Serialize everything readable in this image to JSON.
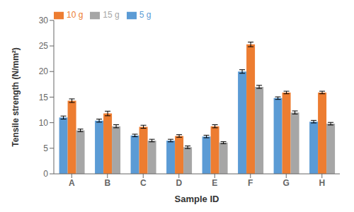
{
  "chart_data": {
    "type": "bar",
    "categories": [
      "A",
      "B",
      "C",
      "D",
      "E",
      "F",
      "G",
      "H"
    ],
    "series": [
      {
        "name": "5 g",
        "color": "#5b9bd5",
        "values": [
          11.0,
          10.4,
          7.5,
          6.5,
          7.3,
          20.0,
          14.8,
          10.2
        ],
        "errors": [
          0.3,
          0.3,
          0.25,
          0.25,
          0.25,
          0.35,
          0.25,
          0.25
        ]
      },
      {
        "name": "10 g",
        "color": "#ed7d31",
        "values": [
          14.3,
          11.8,
          9.2,
          7.4,
          9.3,
          25.3,
          15.9,
          15.9
        ],
        "errors": [
          0.35,
          0.45,
          0.3,
          0.25,
          0.3,
          0.45,
          0.25,
          0.25
        ]
      },
      {
        "name": "15 g",
        "color": "#a6a6a6",
        "values": [
          8.5,
          9.3,
          6.5,
          5.2,
          6.1,
          17.0,
          12.0,
          9.8
        ],
        "errors": [
          0.25,
          0.3,
          0.25,
          0.25,
          0.2,
          0.3,
          0.3,
          0.25
        ]
      }
    ],
    "xlabel": "Sample ID",
    "ylabel": "Tensile strength (N/mm²)",
    "ylim": [
      0,
      30
    ],
    "yticks": [
      0,
      5,
      10,
      15,
      20,
      25,
      30
    ],
    "legend": "upper-left",
    "grid": false
  }
}
